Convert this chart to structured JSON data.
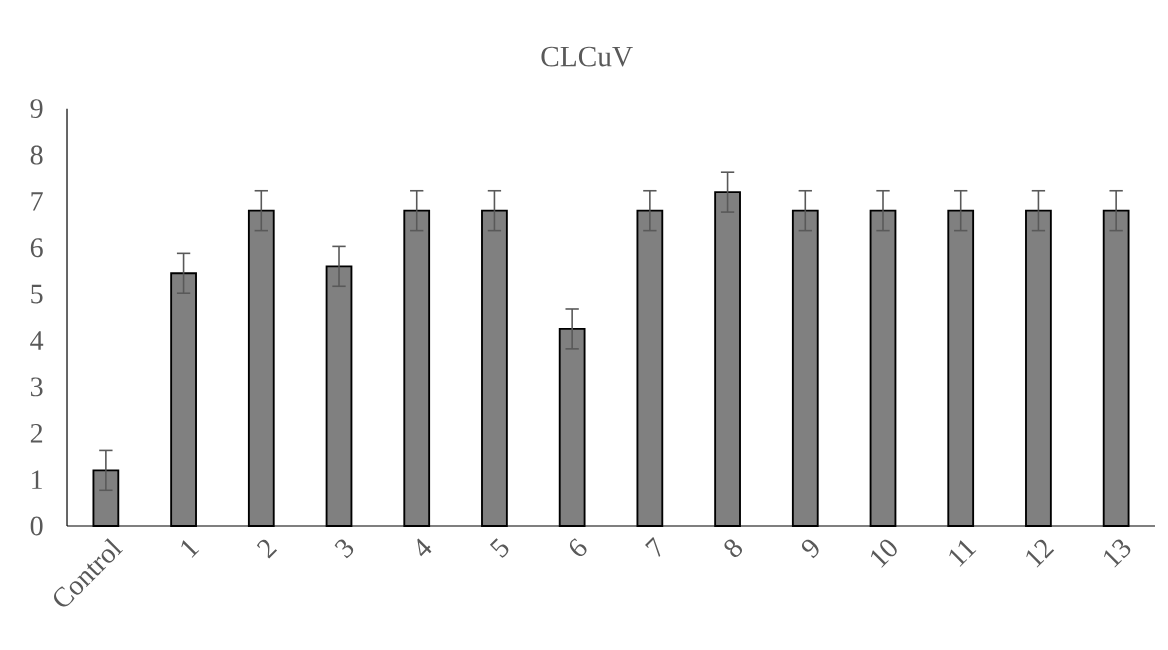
{
  "chart_data": {
    "type": "bar",
    "title": "CLCuV",
    "categories": [
      "Control",
      "1",
      "2",
      "3",
      "4",
      "5",
      "6",
      "7",
      "8",
      "9",
      "10",
      "11",
      "12",
      "13"
    ],
    "values": [
      1.2,
      5.45,
      6.8,
      5.6,
      6.8,
      6.8,
      4.25,
      6.8,
      7.2,
      6.8,
      6.8,
      6.8,
      6.8,
      6.8
    ],
    "errors": [
      0.43,
      0.43,
      0.43,
      0.43,
      0.43,
      0.43,
      0.43,
      0.43,
      0.43,
      0.43,
      0.43,
      0.43,
      0.43,
      0.43
    ],
    "color": "#808080",
    "ylim": [
      0,
      9
    ],
    "yticks": [
      0,
      1,
      2,
      3,
      4,
      5,
      6,
      7,
      8,
      9
    ]
  }
}
